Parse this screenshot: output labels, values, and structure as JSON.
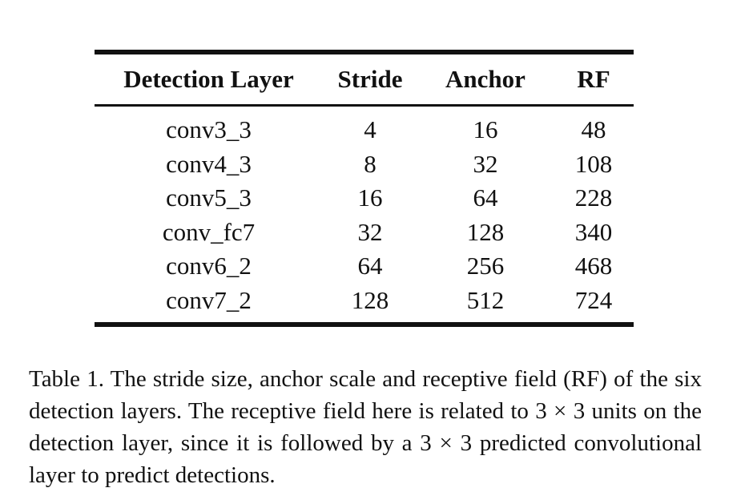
{
  "table": {
    "headers": [
      "Detection Layer",
      "Stride",
      "Anchor",
      "RF"
    ],
    "rows": [
      [
        "conv3_3",
        "4",
        "16",
        "48"
      ],
      [
        "conv4_3",
        "8",
        "32",
        "108"
      ],
      [
        "conv5_3",
        "16",
        "64",
        "228"
      ],
      [
        "conv_fc7",
        "32",
        "128",
        "340"
      ],
      [
        "conv6_2",
        "64",
        "256",
        "468"
      ],
      [
        "conv7_2",
        "128",
        "512",
        "724"
      ]
    ]
  },
  "caption": "Table 1. The stride size, anchor scale and receptive field (RF) of the six detection layers. The receptive field here is related to 3 × 3 units on the detection layer, since it is followed by a 3 × 3 predicted convolutional layer to predict detections."
}
